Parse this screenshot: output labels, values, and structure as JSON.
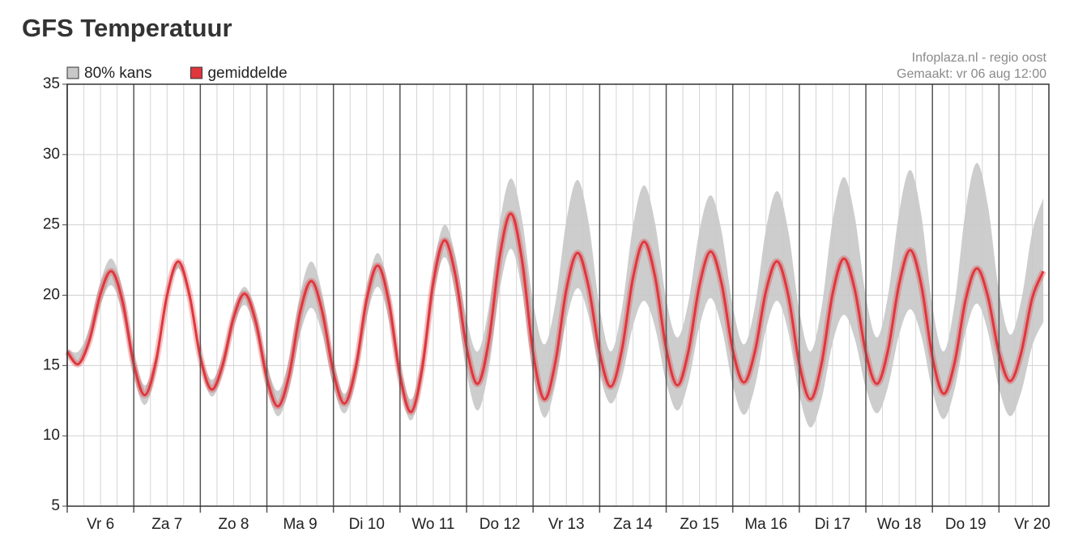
{
  "title": "GFS Temperatuur",
  "chart_data": {
    "type": "band_line",
    "credits": [
      "Infoplaza.nl - regio oost",
      "Gemaakt: vr 06 aug 12:00"
    ],
    "categories": [
      "Vr 6",
      "Za 7",
      "Zo 8",
      "Ma 9",
      "Di 10",
      "Wo 11",
      "Do 12",
      "Vr 13",
      "Za 14",
      "Zo 15",
      "Ma 16",
      "Di 17",
      "Wo 18",
      "Do 19",
      "Vr 20"
    ],
    "x": [
      0,
      4,
      8,
      12,
      16,
      20,
      24,
      28,
      32,
      36,
      40,
      44,
      48,
      52,
      56,
      60,
      64,
      68,
      72,
      76,
      80,
      84,
      88,
      92,
      96,
      100,
      104,
      108,
      112,
      116,
      120,
      124,
      128,
      132,
      136,
      140,
      144,
      148,
      152,
      156,
      160,
      164,
      168,
      172,
      176,
      180,
      184,
      188,
      192,
      196,
      200,
      204,
      208,
      212,
      216,
      220,
      224,
      228,
      232,
      236,
      240,
      244,
      248,
      252,
      256,
      260,
      264,
      268,
      272,
      276,
      280,
      284,
      288,
      292,
      296,
      300,
      304,
      308,
      312,
      316,
      320,
      324,
      328,
      332,
      336,
      340,
      344,
      348,
      352
    ],
    "xlim": [
      0,
      354
    ],
    "xticks": [
      0,
      24,
      48,
      72,
      96,
      120,
      144,
      168,
      192,
      216,
      240,
      264,
      288,
      312,
      336
    ],
    "minor_xticks": [
      6,
      12,
      18,
      30,
      36,
      42,
      54,
      60,
      66,
      78,
      84,
      90,
      102,
      108,
      114,
      126,
      132,
      138,
      150,
      156,
      162,
      174,
      180,
      186,
      198,
      204,
      210,
      222,
      228,
      234,
      246,
      252,
      258,
      270,
      276,
      282,
      294,
      300,
      306,
      318,
      324,
      330,
      342,
      348,
      354
    ],
    "ylim": [
      5,
      35
    ],
    "yticks": [
      5,
      10,
      15,
      20,
      25,
      30,
      35
    ],
    "grid": true,
    "legend": "top-left",
    "series": [
      {
        "name": "80% kans",
        "color": "#c8c8c8",
        "upper": [
          16.2,
          16.0,
          17.7,
          21.0,
          22.6,
          20.4,
          15.9,
          13.6,
          15.8,
          20.3,
          22.5,
          20.4,
          16.1,
          14.0,
          15.7,
          19.0,
          20.6,
          18.8,
          15.1,
          13.2,
          15.5,
          20.1,
          22.4,
          20.1,
          15.4,
          13.0,
          15.5,
          20.5,
          23.0,
          20.4,
          15.2,
          12.6,
          15.7,
          21.9,
          25.0,
          22.8,
          18.3,
          16.0,
          19.1,
          25.2,
          28.3,
          25.4,
          19.5,
          16.5,
          19.4,
          25.3,
          28.2,
          25.2,
          19.1,
          16.0,
          19.0,
          24.9,
          27.8,
          25.1,
          19.7,
          17.0,
          19.5,
          24.6,
          27.1,
          24.5,
          19.2,
          16.5,
          19.2,
          24.7,
          27.4,
          24.6,
          18.9,
          16.0,
          19.1,
          25.3,
          28.4,
          25.6,
          19.9,
          17.0,
          20.0,
          25.9,
          28.9,
          25.7,
          19.2,
          16.0,
          19.4,
          26.1,
          29.4,
          26.4,
          20.3,
          17.2,
          19.6,
          24.5,
          26.9
        ],
        "lower": [
          15.7,
          15.0,
          16.4,
          19.3,
          20.7,
          18.6,
          14.3,
          12.2,
          14.6,
          19.5,
          21.9,
          19.6,
          15.1,
          12.8,
          14.4,
          17.7,
          19.3,
          17.3,
          13.4,
          11.4,
          13.3,
          17.2,
          19.1,
          17.2,
          13.5,
          11.6,
          13.9,
          18.4,
          20.6,
          18.2,
          13.5,
          11.1,
          14.0,
          19.8,
          22.7,
          20.0,
          14.5,
          11.8,
          14.7,
          20.4,
          23.3,
          20.3,
          14.3,
          11.3,
          13.6,
          18.2,
          20.5,
          18.5,
          14.4,
          12.3,
          14.1,
          17.8,
          19.6,
          17.7,
          13.8,
          11.8,
          13.8,
          17.8,
          19.8,
          17.7,
          13.6,
          11.5,
          13.5,
          17.6,
          19.6,
          17.4,
          12.9,
          10.6,
          12.6,
          16.6,
          18.6,
          16.9,
          13.4,
          11.6,
          13.5,
          17.2,
          19.0,
          17.1,
          13.2,
          11.2,
          13.3,
          17.4,
          19.4,
          17.4,
          13.4,
          11.4,
          13.1,
          16.4,
          18.1
        ]
      },
      {
        "name": "gemiddelde",
        "color": "#e0363c",
        "values": [
          16.0,
          15.1,
          16.8,
          20.1,
          21.7,
          19.5,
          15.1,
          12.9,
          15.3,
          20.0,
          22.4,
          20.1,
          15.6,
          13.3,
          15.0,
          18.4,
          20.1,
          18.1,
          14.1,
          12.1,
          14.3,
          18.8,
          21.0,
          18.8,
          14.5,
          12.3,
          14.8,
          19.7,
          22.1,
          19.5,
          14.3,
          11.7,
          14.8,
          20.9,
          23.9,
          21.4,
          16.3,
          13.7,
          16.7,
          22.8,
          25.8,
          22.5,
          15.9,
          12.6,
          15.2,
          20.4,
          23.0,
          20.6,
          15.9,
          13.5,
          16.1,
          21.2,
          23.8,
          21.3,
          16.2,
          13.6,
          16.0,
          20.7,
          23.1,
          20.8,
          16.1,
          13.8,
          16.0,
          20.3,
          22.4,
          20.0,
          15.1,
          12.6,
          15.1,
          20.1,
          22.6,
          20.4,
          15.9,
          13.7,
          16.1,
          20.8,
          23.2,
          20.7,
          15.6,
          13.0,
          15.2,
          19.7,
          21.9,
          19.9,
          15.9,
          13.9,
          15.9,
          19.8,
          21.7
        ]
      }
    ]
  }
}
